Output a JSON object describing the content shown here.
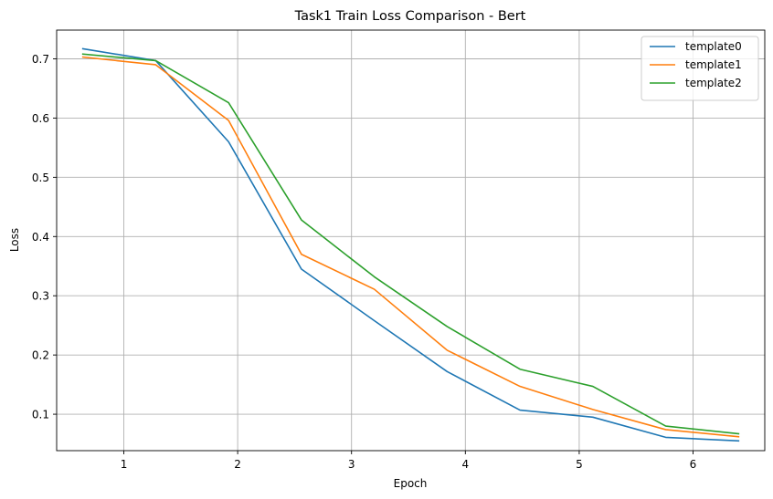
{
  "chart_data": {
    "type": "line",
    "title": "Task1 Train Loss Comparison - Bert",
    "xlabel": "Epoch",
    "ylabel": "Loss",
    "xlim": [
      0.41,
      6.63
    ],
    "ylim": [
      0.0385,
      0.7485
    ],
    "xticks": [
      1,
      2,
      3,
      4,
      5,
      6
    ],
    "yticks": [
      0.1,
      0.2,
      0.3,
      0.4,
      0.5,
      0.6,
      0.7
    ],
    "grid": true,
    "legend_position": "top-right",
    "x": [
      0.64,
      1.28,
      1.92,
      2.56,
      3.2,
      3.84,
      4.48,
      5.12,
      5.76,
      6.4
    ],
    "series": [
      {
        "name": "template0",
        "color": "#1f77b4",
        "values": [
          0.717,
          0.697,
          0.56,
          0.345,
          0.258,
          0.172,
          0.107,
          0.095,
          0.061,
          0.055
        ]
      },
      {
        "name": "template1",
        "color": "#ff7f0e",
        "values": [
          0.703,
          0.69,
          0.596,
          0.37,
          0.311,
          0.208,
          0.147,
          0.108,
          0.074,
          0.062
        ]
      },
      {
        "name": "template2",
        "color": "#2ca02c",
        "values": [
          0.708,
          0.697,
          0.626,
          0.428,
          0.332,
          0.248,
          0.176,
          0.147,
          0.08,
          0.067
        ]
      }
    ]
  }
}
